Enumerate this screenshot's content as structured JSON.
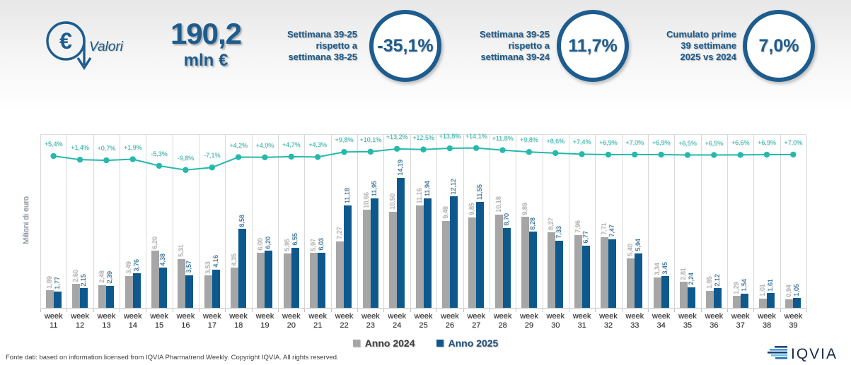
{
  "header": {
    "icon_label": "Valori",
    "total_value": "190,2",
    "total_unit": "mln €",
    "kpis": [
      {
        "label": "Settimana 39-25\nrispetto a\nsettimana 38-25",
        "value": "-35,1%"
      },
      {
        "label": "Settimana 39-25\nrispetto a\nsettimana 39-24",
        "value": "11,7%"
      },
      {
        "label": "Cumulato prime\n39 settimane\n2025 vs 2024",
        "value": "7,0%"
      }
    ]
  },
  "chart_data": {
    "type": "bar",
    "title": "",
    "xlabel": "",
    "ylabel": "Milioni di euro",
    "ylim": [
      0,
      19
    ],
    "grid": "vertical",
    "categories": [
      "week 11",
      "week 12",
      "week 13",
      "week 14",
      "week 15",
      "week 16",
      "week 17",
      "week 18",
      "week 19",
      "week 20",
      "week 21",
      "week 22",
      "week 23",
      "week 24",
      "week 25",
      "week 26",
      "week 27",
      "week 28",
      "week 29",
      "week 30",
      "week 31",
      "week 32",
      "week 33",
      "week 34",
      "week 35",
      "week 36",
      "week 37",
      "week 38",
      "week 39"
    ],
    "series": [
      {
        "name": "Anno 2024",
        "color": "#a6a6a6",
        "label_color": "#a3a3a3",
        "values": [
          1.89,
          2.6,
          2.48,
          3.49,
          6.2,
          5.31,
          3.53,
          4.35,
          6.0,
          5.95,
          5.97,
          7.27,
          10.66,
          10.5,
          11.16,
          9.48,
          9.85,
          10.18,
          9.89,
          8.27,
          7.96,
          7.71,
          5.4,
          3.34,
          2.81,
          1.85,
          1.29,
          1.01,
          0.94
        ]
      },
      {
        "name": "Anno 2025",
        "color": "#0d598d",
        "label_color": "#0d598d",
        "values": [
          1.77,
          2.15,
          2.39,
          3.76,
          4.38,
          3.57,
          4.16,
          8.58,
          6.2,
          6.55,
          6.03,
          11.18,
          11.95,
          14.19,
          11.94,
          12.12,
          11.55,
          8.7,
          8.28,
          7.33,
          6.77,
          7.47,
          5.94,
          3.45,
          2.24,
          2.12,
          1.54,
          1.61,
          1.05
        ]
      }
    ],
    "line": {
      "name": "Variazione % vs anno precedente",
      "color": "#25b8ad",
      "values": [
        5.4,
        1.4,
        0.7,
        1.9,
        -5.3,
        -9.8,
        -7.1,
        4.2,
        4.0,
        4.7,
        4.3,
        9.8,
        10.1,
        13.2,
        12.5,
        13.8,
        14.1,
        11.8,
        9.8,
        8.6,
        7.4,
        6.9,
        7.0,
        6.9,
        6.5,
        6.5,
        6.6,
        6.9,
        7.0
      ],
      "labels": [
        "+5,4%",
        "+1,4%",
        "+0,7%",
        "+1,9%",
        "-5,3%",
        "-9,8%",
        "-7,1%",
        "+4,2%",
        "+4,0%",
        "+4,7%",
        "+4,3%",
        "+9,8%",
        "+10,1%",
        "+13,2%",
        "+12,5%",
        "+13,8%",
        "+14,1%",
        "+11,8%",
        "+9,8%",
        "+8,6%",
        "+7,4%",
        "+6,9%",
        "+7,0%",
        "+6,9%",
        "+6,5%",
        "+6,5%",
        "+6,6%",
        "+6,9%",
        "+7,0%"
      ]
    }
  },
  "legend": {
    "items": [
      {
        "label": "Anno 2024",
        "color": "#a6a6a6",
        "text_color": "#3f3f3f"
      },
      {
        "label": "Anno 2025",
        "color": "#0d598d",
        "text_color": "#1f4e79"
      }
    ]
  },
  "footer": {
    "source": "Fonte dati: based on information licensed from IQVIA Pharmatrend Weekly. Copyright IQVIA. All rights reserved.",
    "logo_text": "IQVIA"
  },
  "colors": {
    "brand_navy": "#1d5c8e",
    "accent_teal": "#25b8ad",
    "bar_gray": "#a6a6a6",
    "bar_blue": "#0d598d"
  }
}
